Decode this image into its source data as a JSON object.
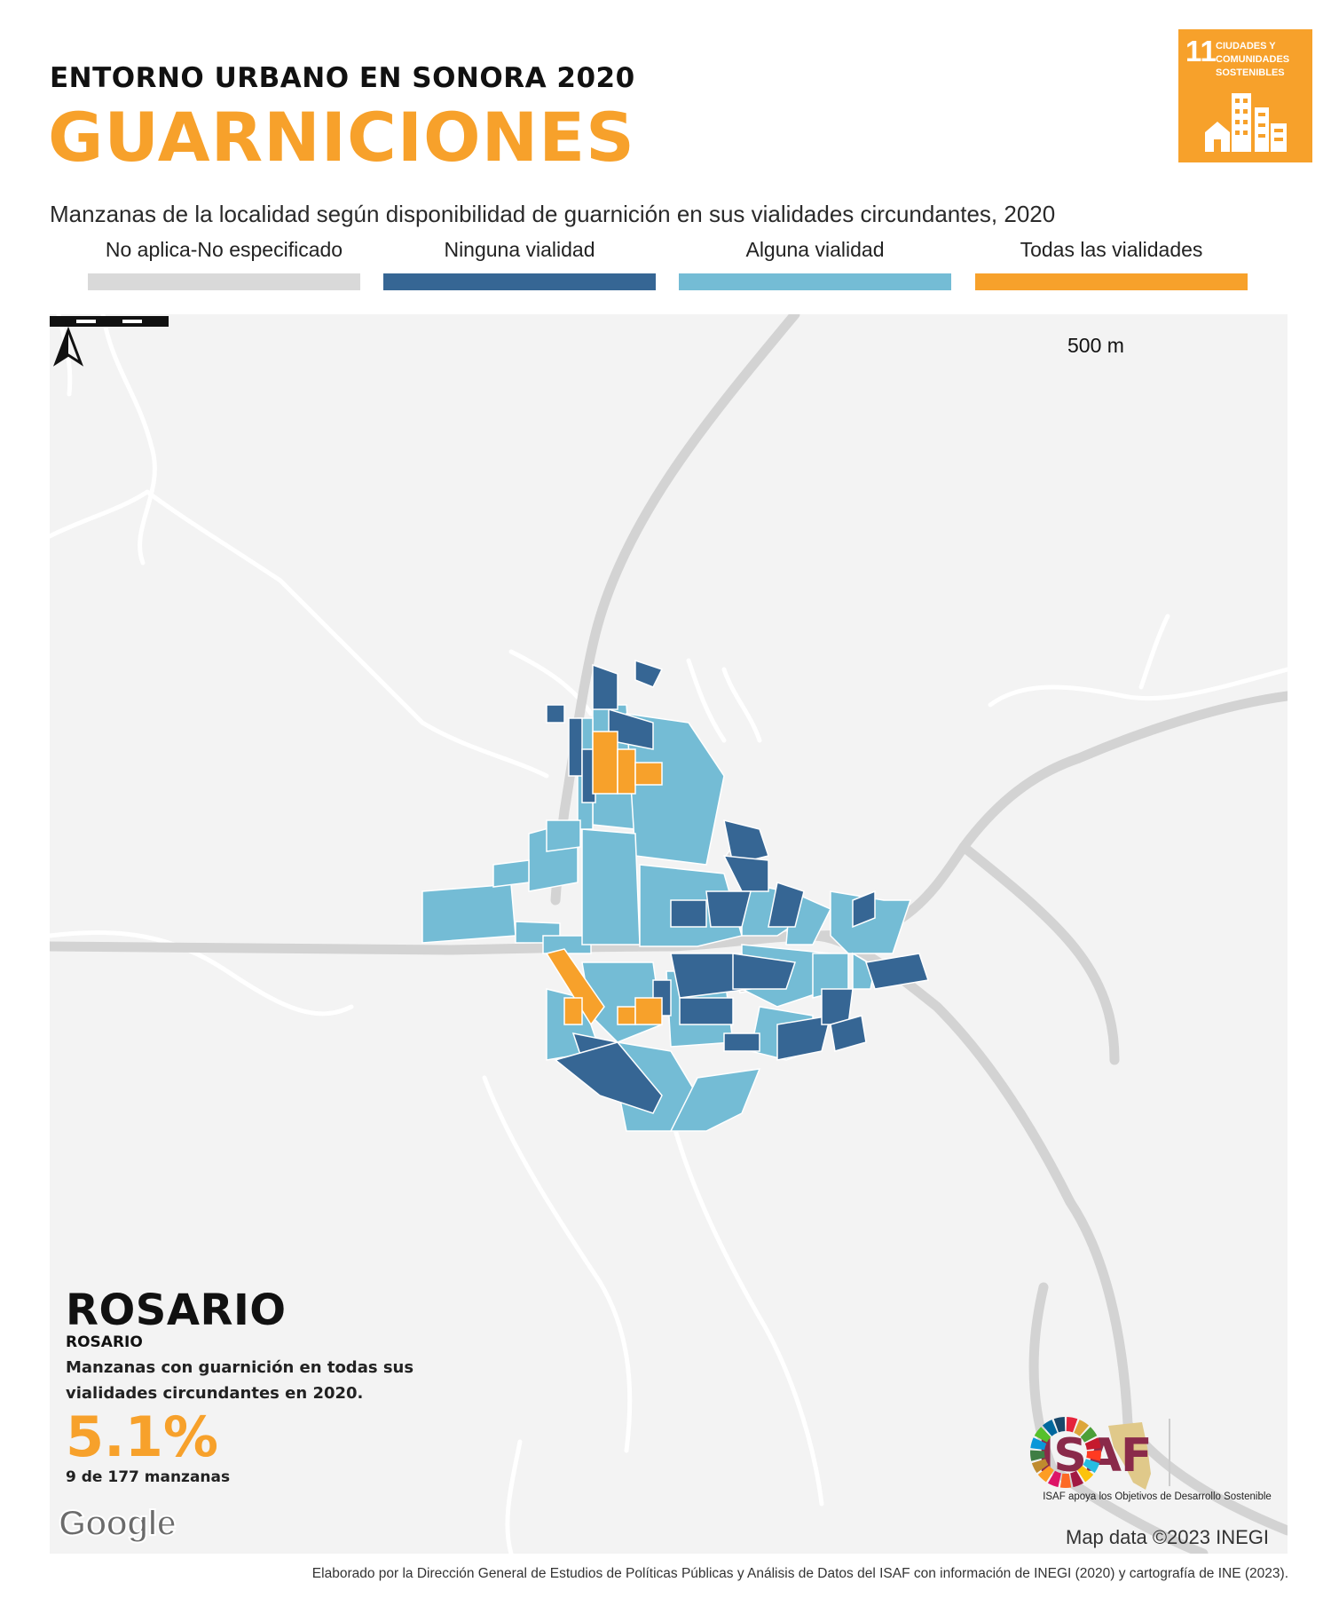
{
  "header": {
    "supertitle": "ENTORNO URBANO EN SONORA 2020",
    "title": "GUARNICIONES",
    "subtitle": "Manzanas de la localidad según disponibilidad de guarnición en sus vialidades circundantes, 2020"
  },
  "sdg_badge": {
    "number": "11",
    "label": "CIUDADES Y COMUNIDADES SOSTENIBLES",
    "color": "#f7a12b",
    "icon": "city-buildings-icon"
  },
  "legend": [
    {
      "label": "No aplica-No especificado",
      "color": "#d9d9d9"
    },
    {
      "label": "Ninguna vialidad",
      "color": "#366694"
    },
    {
      "label": "Alguna vialidad",
      "color": "#74bcd5"
    },
    {
      "label": "Todas las vialidades",
      "color": "#f7a12b"
    }
  ],
  "map": {
    "scale_label": "500 m",
    "north_label": "N",
    "credit": "Map data ©2023 INEGI",
    "google_label": "Google"
  },
  "summary": {
    "locality": "ROSARIO",
    "municipality": "ROSARIO",
    "description": "Manzanas con guarnición en todas sus vialidades circundantes en 2020.",
    "percentage": "5.1%",
    "count": "9 de 177 manzanas"
  },
  "isaf": {
    "name": "ISAF",
    "tagline": "ISAF apoya los Objetivos de Desarrollo Sostenible"
  },
  "footer": "Elaborado por la Dirección General de Estudios de Políticas Públicas y Análisis de Datos del ISAF con información de INEGI (2020) y cartografía de INE (2023)."
}
